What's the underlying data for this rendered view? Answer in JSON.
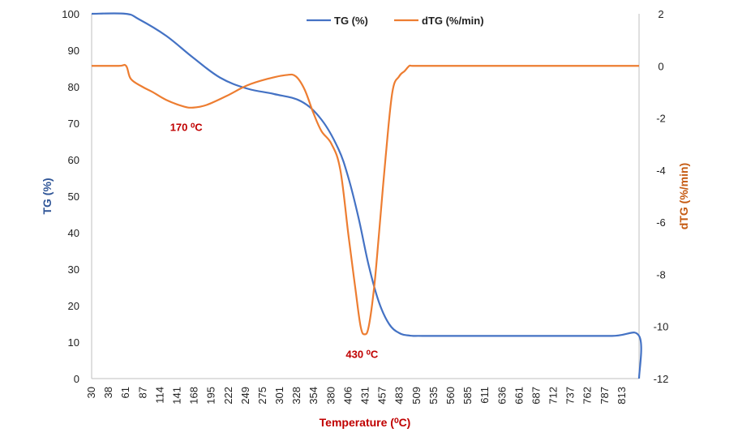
{
  "chart_data": {
    "type": "line",
    "xlabel": "Temperature (⁰C)",
    "ylabel_left": "TG (%)",
    "ylabel_right": "dTG (%/min)",
    "x_tick_labels": [
      "30",
      "38",
      "61",
      "87",
      "114",
      "141",
      "168",
      "195",
      "222",
      "249",
      "275",
      "301",
      "328",
      "354",
      "380",
      "406",
      "431",
      "457",
      "483",
      "509",
      "535",
      "560",
      "585",
      "611",
      "636",
      "661",
      "687",
      "712",
      "737",
      "762",
      "787",
      "813"
    ],
    "xlim": [
      30,
      840
    ],
    "ylim_left": [
      0,
      100
    ],
    "ylim_right": [
      -12,
      2
    ],
    "y_left_ticks": [
      0,
      10,
      20,
      30,
      40,
      50,
      60,
      70,
      80,
      90,
      100
    ],
    "y_right_ticks": [
      -12,
      -10,
      -8,
      -6,
      -4,
      -2,
      0,
      2
    ],
    "grid": false,
    "legend_position": "top-center",
    "series": [
      {
        "name": "TG (%)",
        "axis": "left",
        "color": "#4472C4",
        "x": [
          30,
          80,
          100,
          140,
          180,
          220,
          260,
          300,
          340,
          370,
          395,
          410,
          425,
          440,
          455,
          470,
          485,
          500,
          520,
          600,
          700,
          800,
          840,
          840
        ],
        "y": [
          100,
          100,
          98.5,
          94,
          88,
          82.5,
          79.5,
          78,
          76,
          71,
          63,
          55,
          44,
          31,
          21,
          15,
          12.5,
          11.8,
          11.7,
          11.7,
          11.7,
          11.7,
          11.7,
          0
        ]
      },
      {
        "name": "dTG (%/min)",
        "axis": "right",
        "color": "#ED7D31",
        "x": [
          30,
          70,
          81,
          88,
          105,
          120,
          140,
          165,
          180,
          200,
          230,
          260,
          290,
          318,
          332,
          345,
          358,
          370,
          385,
          398,
          410,
          420,
          428,
          434,
          440,
          448,
          455,
          465,
          475,
          485,
          493,
          500,
          505,
          530,
          600,
          700,
          800,
          840
        ],
        "y": [
          0,
          0,
          0,
          -0.5,
          -0.8,
          -1.0,
          -1.3,
          -1.55,
          -1.6,
          -1.5,
          -1.15,
          -0.75,
          -0.5,
          -0.35,
          -0.4,
          -0.9,
          -1.8,
          -2.5,
          -3.0,
          -4.0,
          -6.5,
          -8.5,
          -10.0,
          -10.3,
          -10.0,
          -8.5,
          -6.5,
          -3.5,
          -1.0,
          -0.4,
          -0.2,
          0,
          0,
          0,
          0,
          0,
          0,
          0
        ]
      }
    ],
    "annotations": [
      {
        "text": "170 ⁰C",
        "x": 170,
        "y": -2.5,
        "axis": "right"
      },
      {
        "text": "430 ⁰C",
        "x": 430,
        "y": -11.2,
        "axis": "right"
      }
    ]
  }
}
